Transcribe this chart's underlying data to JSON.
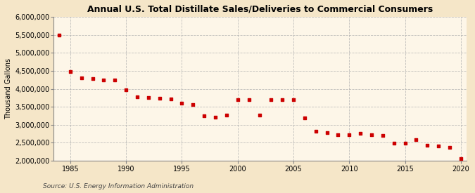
{
  "title": "Annual U.S. Total Distillate Sales/Deliveries to Commercial Consumers",
  "ylabel": "Thousand Gallons",
  "source": "Source: U.S. Energy Information Administration",
  "background_color": "#f5e6c8",
  "plot_background_color": "#fdf6e8",
  "marker_color": "#cc0000",
  "ylim": [
    2000000,
    6000000
  ],
  "yticks": [
    2000000,
    2500000,
    3000000,
    3500000,
    4000000,
    4500000,
    5000000,
    5500000,
    6000000
  ],
  "xlim": [
    1983.5,
    2020.5
  ],
  "xticks": [
    1985,
    1990,
    1995,
    2000,
    2005,
    2010,
    2015,
    2020
  ],
  "years": [
    1984,
    1985,
    1986,
    1987,
    1988,
    1989,
    1990,
    1991,
    1992,
    1993,
    1994,
    1995,
    1996,
    1997,
    1998,
    1999,
    2000,
    2001,
    2002,
    2003,
    2004,
    2005,
    2006,
    2007,
    2008,
    2009,
    2010,
    2011,
    2012,
    2013,
    2014,
    2015,
    2016,
    2017,
    2018,
    2019,
    2020
  ],
  "values": [
    5500000,
    4480000,
    4300000,
    4280000,
    4240000,
    4240000,
    3980000,
    3780000,
    3760000,
    3730000,
    3720000,
    3610000,
    3570000,
    3240000,
    3210000,
    3270000,
    3700000,
    3700000,
    3270000,
    3700000,
    3700000,
    3690000,
    3200000,
    2820000,
    2790000,
    2720000,
    2720000,
    2760000,
    2730000,
    2710000,
    2490000,
    2480000,
    2580000,
    2430000,
    2420000,
    2370000,
    2060000
  ]
}
